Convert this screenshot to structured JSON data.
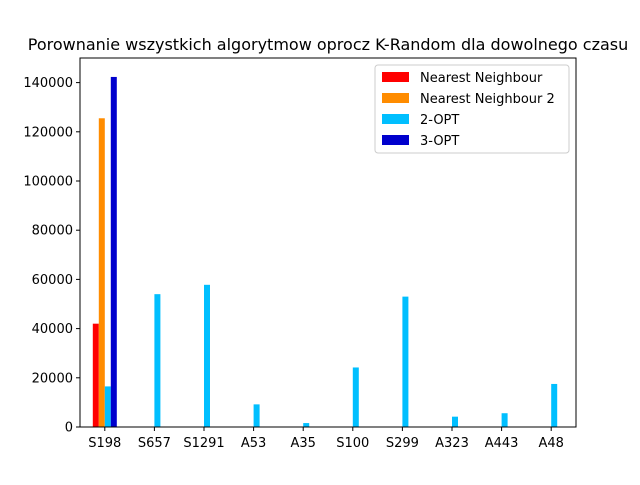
{
  "chart_data": {
    "type": "bar",
    "title": "Porownanie wszystkich algorytmow oprocz K-Random dla dowolnego czasu",
    "xlabel": "",
    "ylabel": "",
    "categories": [
      "S198",
      "S657",
      "S1291",
      "A53",
      "A35",
      "S100",
      "S299",
      "A323",
      "A443",
      "A48"
    ],
    "ylim": [
      0,
      150000
    ],
    "yticks": [
      0,
      20000,
      40000,
      60000,
      80000,
      100000,
      120000,
      140000
    ],
    "ytick_labels": [
      "0",
      "20000",
      "40000",
      "60000",
      "80000",
      "100000",
      "120000",
      "140000"
    ],
    "grid": false,
    "legend_position": "top-right",
    "series": [
      {
        "name": "Nearest Neighbour",
        "color": "#ff0000",
        "values": [
          42000,
          0,
          0,
          0,
          0,
          0,
          0,
          0,
          0,
          0
        ]
      },
      {
        "name": "Nearest Neighbour 2",
        "color": "#ff8c00",
        "values": [
          125500,
          0,
          0,
          0,
          0,
          0,
          0,
          0,
          0,
          0
        ]
      },
      {
        "name": "2-OPT",
        "color": "#00bfff",
        "values": [
          16500,
          54000,
          57800,
          9200,
          1600,
          24200,
          53000,
          4200,
          5600,
          17500
        ]
      },
      {
        "name": "3-OPT",
        "color": "#0000cd",
        "values": [
          142300,
          0,
          0,
          0,
          0,
          0,
          0,
          0,
          0,
          0
        ]
      }
    ]
  }
}
